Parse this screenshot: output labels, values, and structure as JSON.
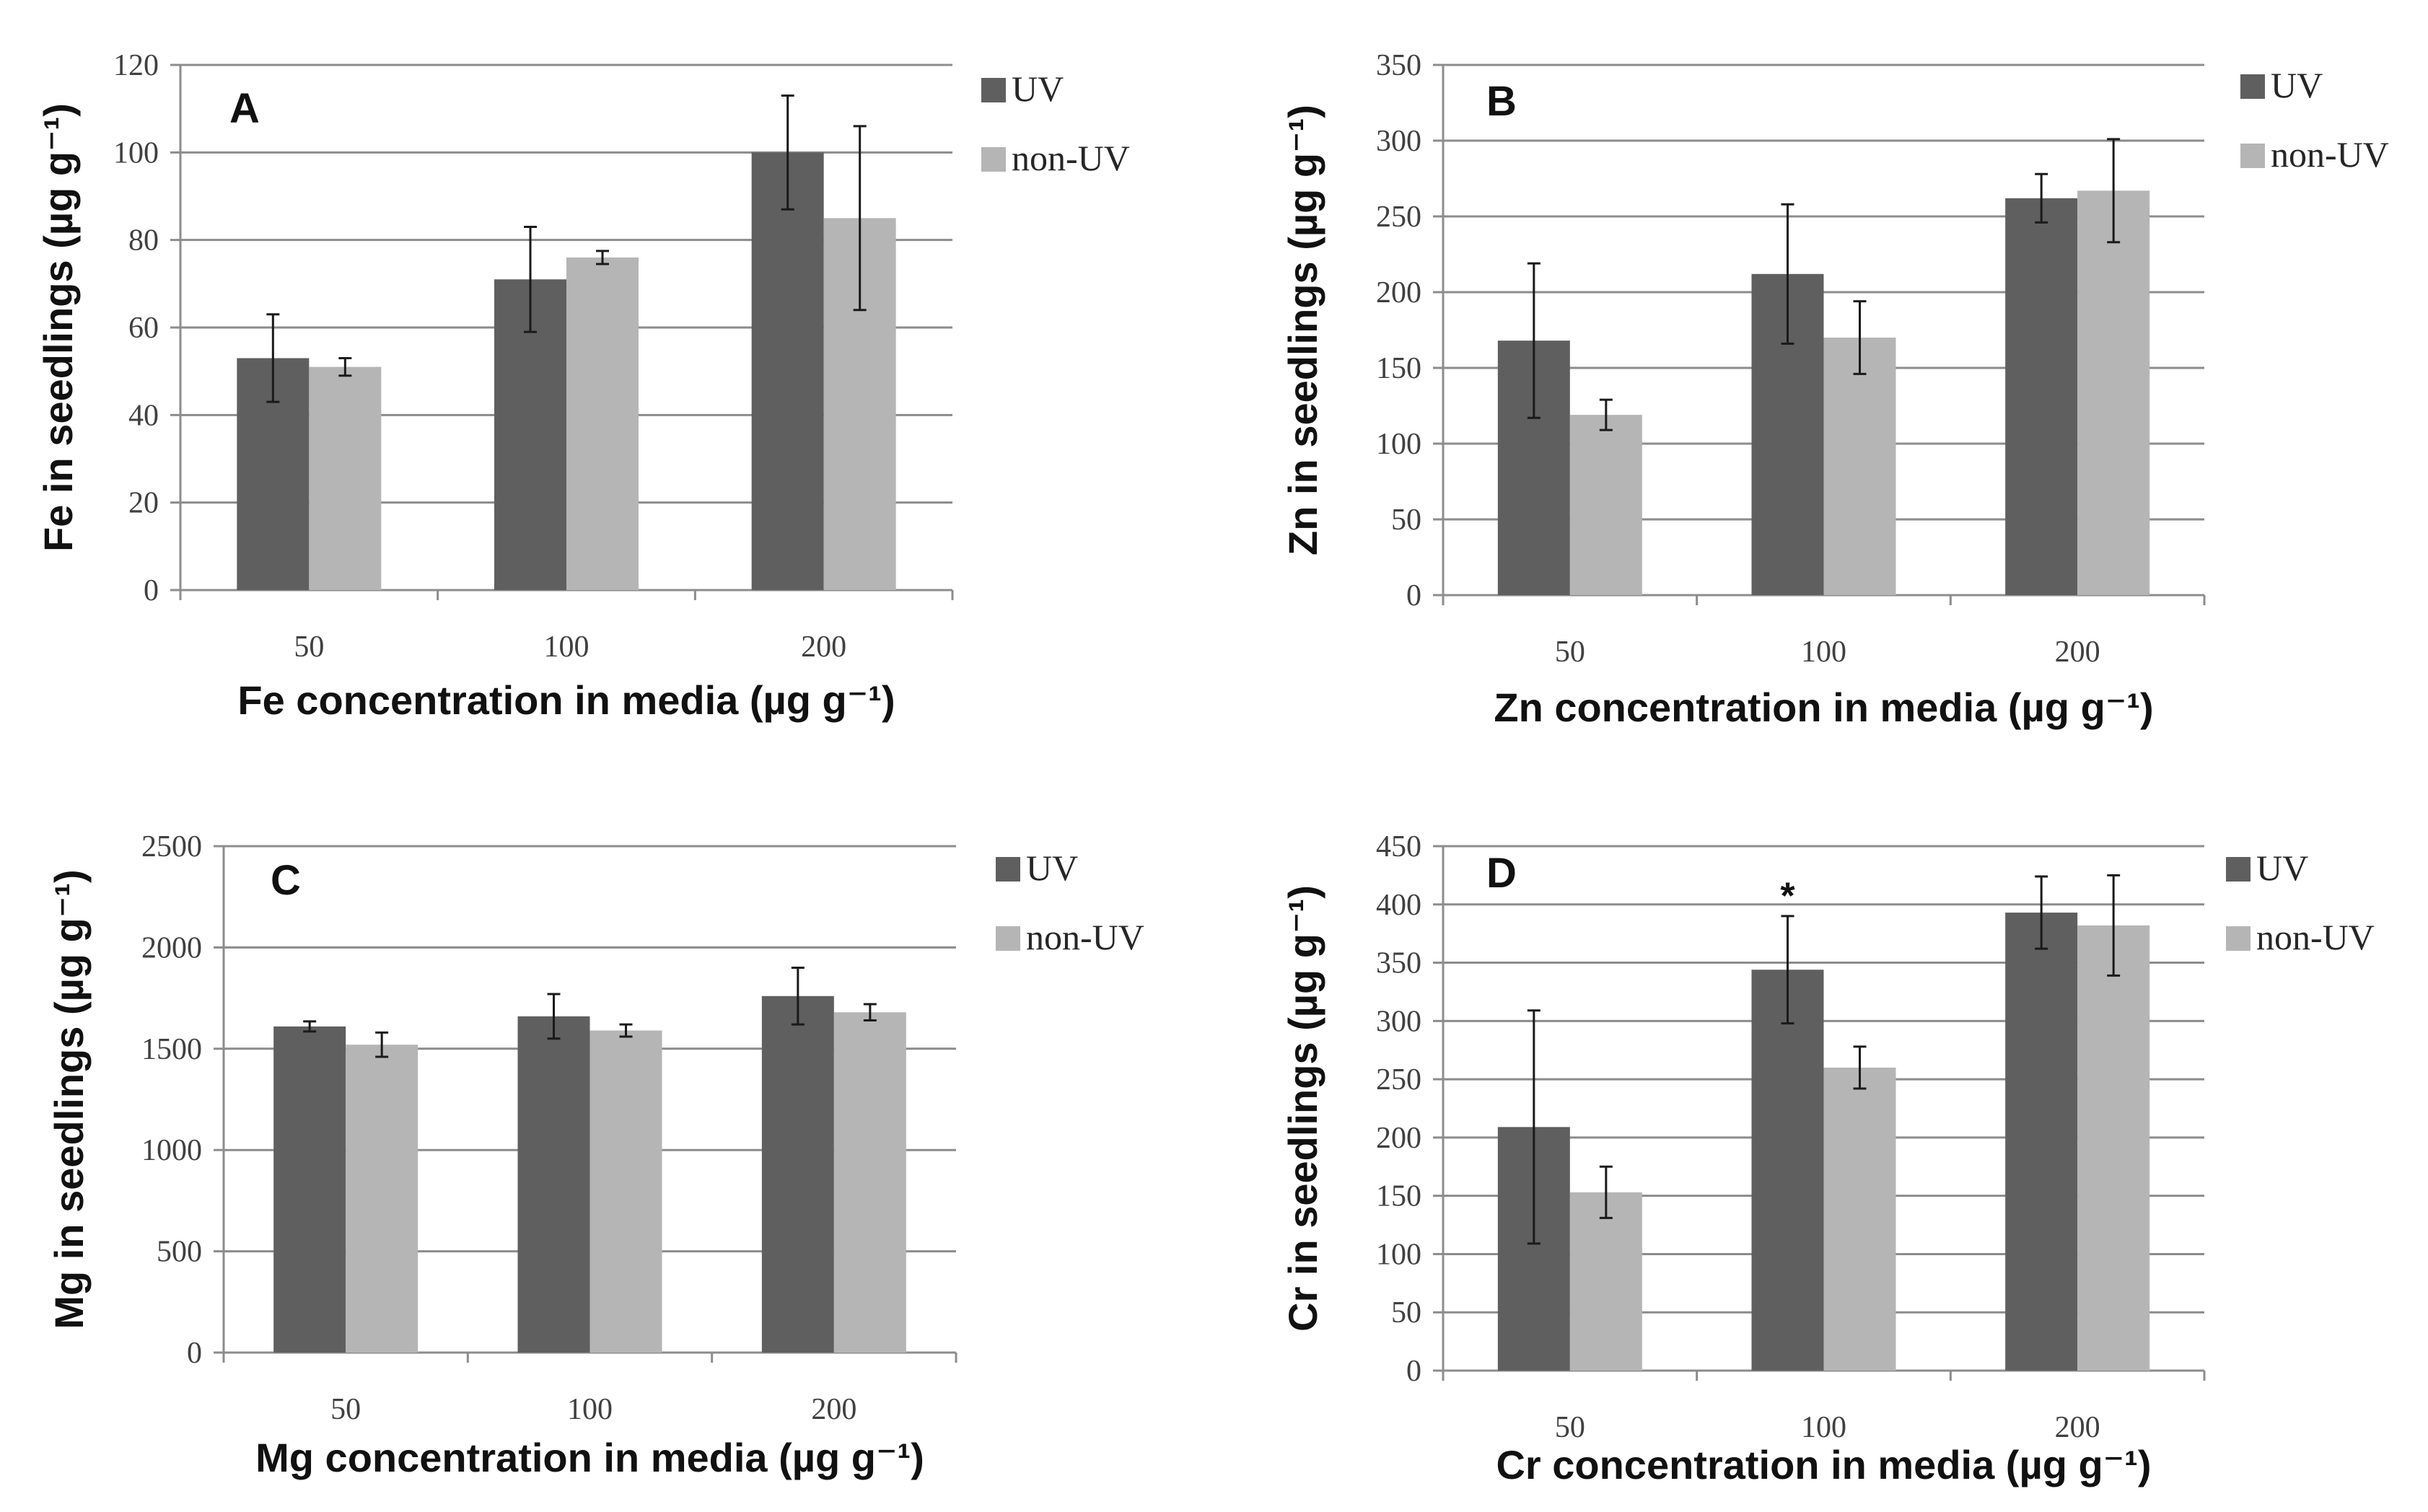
{
  "chart_data": [
    {
      "type": "bar",
      "panel": "A",
      "categories": [
        "50",
        "100",
        "200"
      ],
      "series": [
        {
          "name": "UV",
          "values": [
            53,
            71,
            100
          ],
          "errors": [
            10,
            12,
            13
          ]
        },
        {
          "name": "non-UV",
          "values": [
            51,
            76,
            85
          ],
          "errors": [
            2,
            1.5,
            21
          ]
        }
      ],
      "ylim": [
        0,
        120
      ],
      "yticks": [
        "0",
        "20",
        "40",
        "60",
        "80",
        "100",
        "120"
      ],
      "ylabel": "Fe  in seedlings (µg g⁻¹)",
      "xlabel": "Fe concentration in media (µg g⁻¹)",
      "annotations": [],
      "grid": "horizontal",
      "legend": "right"
    },
    {
      "type": "bar",
      "panel": "B",
      "categories": [
        "50",
        "100",
        "200"
      ],
      "series": [
        {
          "name": "UV",
          "values": [
            168,
            212,
            262
          ],
          "errors": [
            51,
            46,
            16
          ]
        },
        {
          "name": "non-UV",
          "values": [
            119,
            170,
            267
          ],
          "errors": [
            10,
            24,
            34
          ]
        }
      ],
      "ylim": [
        0,
        350
      ],
      "yticks": [
        "0",
        "50",
        "100",
        "150",
        "200",
        "250",
        "300",
        "350"
      ],
      "ylabel": "Zn  in seedlings (µg g⁻¹)",
      "xlabel": "Zn concentration in media (µg g⁻¹)",
      "annotations": [],
      "grid": "horizontal",
      "legend": "right"
    },
    {
      "type": "bar",
      "panel": "C",
      "categories": [
        "50",
        "100",
        "200"
      ],
      "series": [
        {
          "name": "UV",
          "values": [
            1610,
            1660,
            1760
          ],
          "errors": [
            25,
            110,
            140
          ]
        },
        {
          "name": "non-UV",
          "values": [
            1520,
            1590,
            1680
          ],
          "errors": [
            60,
            30,
            40
          ]
        }
      ],
      "ylim": [
        0,
        2500
      ],
      "yticks": [
        "0",
        "500",
        "1000",
        "1500",
        "2000",
        "2500"
      ],
      "ylabel": "Mg  in seedlings (µg g⁻¹)",
      "xlabel": "Mg concentration in media (µg g⁻¹)",
      "annotations": [],
      "grid": "horizontal",
      "legend": "right"
    },
    {
      "type": "bar",
      "panel": "D",
      "categories": [
        "50",
        "100",
        "200"
      ],
      "series": [
        {
          "name": "UV",
          "values": [
            209,
            344,
            393
          ],
          "errors": [
            100,
            46,
            31
          ]
        },
        {
          "name": "non-UV",
          "values": [
            153,
            260,
            382
          ],
          "errors": [
            22,
            18,
            43
          ]
        }
      ],
      "ylim": [
        0,
        450
      ],
      "yticks": [
        "0",
        "50",
        "100",
        "150",
        "200",
        "250",
        "300",
        "350",
        "400",
        "450"
      ],
      "ylabel": "Cr  in seedlings (µg g⁻¹)",
      "xlabel": "Cr concentration in media (µg g⁻¹)",
      "annotations": [
        {
          "text": "*",
          "category": "100",
          "value": 410
        }
      ],
      "grid": "horizontal",
      "legend": "right"
    }
  ],
  "colors": {
    "uv": "#5f5f5f",
    "non_uv": "#b5b5b5",
    "grid": "#8c8c8c",
    "axis": "#8c8c8c",
    "error_bar": "#1a1a1a"
  }
}
